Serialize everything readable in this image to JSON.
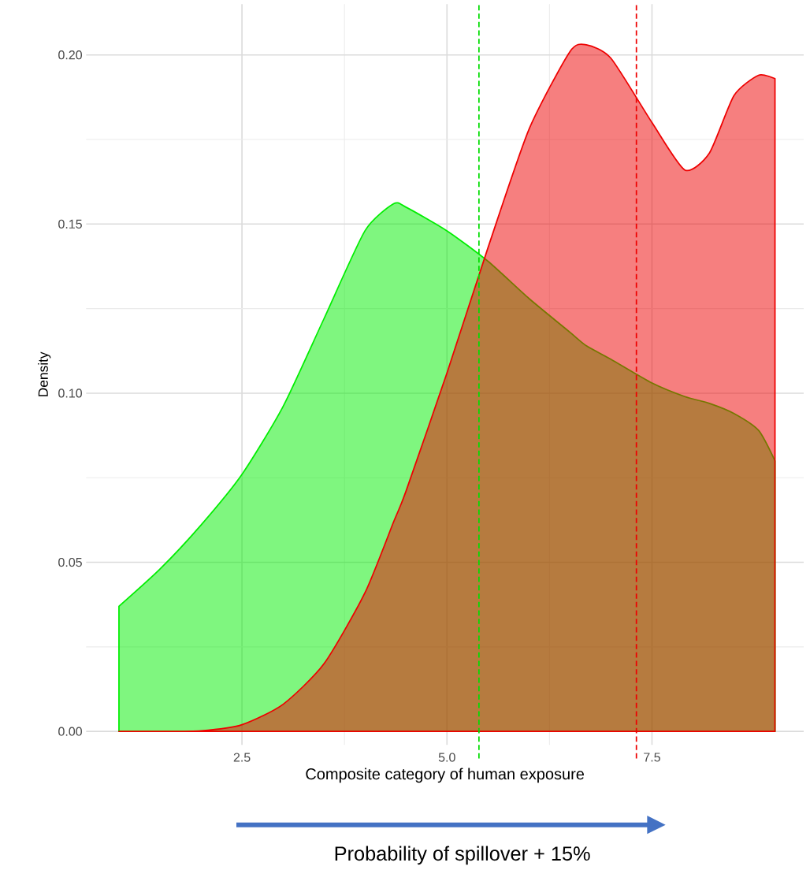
{
  "chart_data": {
    "type": "area",
    "xlabel": "Composite category of human exposure",
    "ylabel": "Density",
    "x": [
      1.0,
      1.5,
      2.0,
      2.5,
      3.0,
      3.5,
      4.0,
      4.35,
      4.5,
      5.0,
      5.5,
      6.0,
      6.5,
      6.7,
      7.0,
      7.5,
      7.9,
      8.2,
      8.5,
      8.8,
      9.0
    ],
    "series": [
      {
        "color": "#00ee00",
        "values": [
          0.037,
          0.048,
          0.061,
          0.076,
          0.096,
          0.122,
          0.148,
          0.156,
          0.155,
          0.148,
          0.139,
          0.128,
          0.118,
          0.114,
          0.11,
          0.103,
          0.099,
          0.097,
          0.094,
          0.089,
          0.08
        ]
      },
      {
        "color": "#ee0000",
        "values": [
          0.0,
          0.0,
          0.0002,
          0.002,
          0.008,
          0.02,
          0.041,
          0.062,
          0.071,
          0.106,
          0.143,
          0.178,
          0.201,
          0.203,
          0.199,
          0.18,
          0.166,
          0.171,
          0.188,
          0.194,
          0.193
        ]
      }
    ],
    "xlim": [
      0.6,
      9.35
    ],
    "ylim": [
      -0.004,
      0.215
    ],
    "xticks": [
      2.5,
      {
        "value": 5,
        "label": "5.0"
      },
      7.5
    ],
    "yticks": [
      {
        "value": 0,
        "label": "0.00"
      },
      0.05,
      {
        "value": 0.1,
        "label": "0.10"
      },
      0.15,
      {
        "value": 0.2,
        "label": "0.20"
      }
    ],
    "grid": true,
    "ref_lines": [
      {
        "axis": "x",
        "value": 5.39,
        "color": "#00dd00",
        "line_style": "dashed"
      },
      {
        "axis": "x",
        "value": 7.31,
        "color": "#ee0000",
        "line_style": "dashed"
      }
    ],
    "annotations": [
      "Probability of spillover + 15%"
    ]
  }
}
